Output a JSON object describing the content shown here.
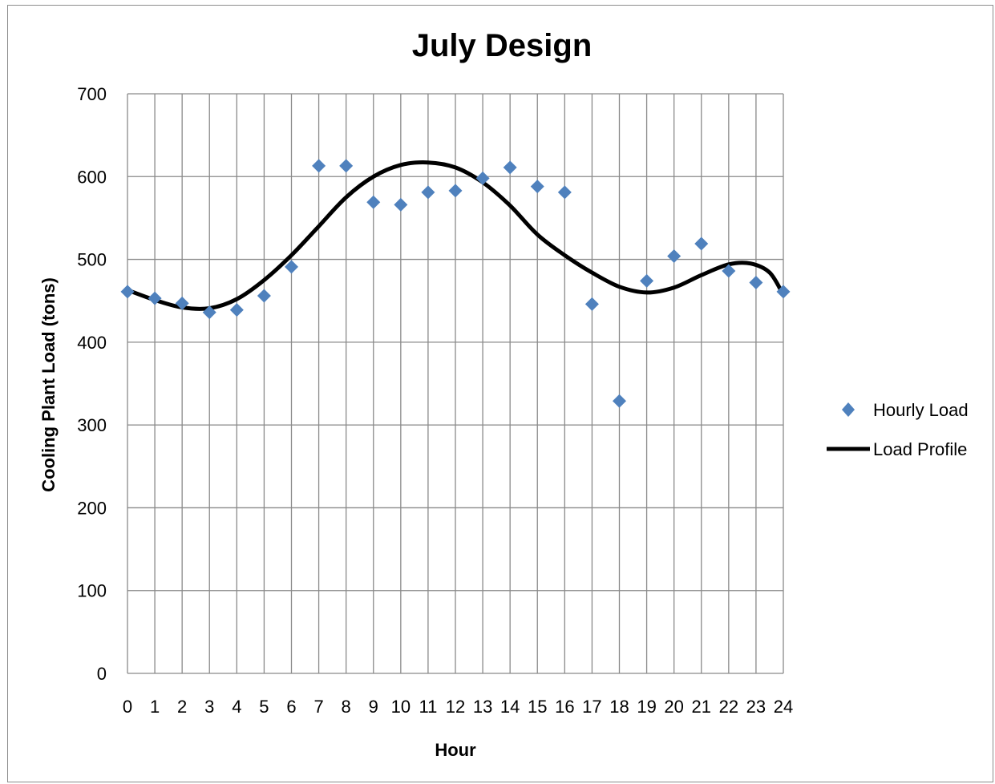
{
  "chart_data": {
    "type": "scatter",
    "title": "July Design",
    "xlabel": "Hour",
    "ylabel": "Cooling Plant Load (tons)",
    "xlim": [
      0,
      24
    ],
    "ylim": [
      0,
      700
    ],
    "x_ticks": [
      0,
      1,
      2,
      3,
      4,
      5,
      6,
      7,
      8,
      9,
      10,
      11,
      12,
      13,
      14,
      15,
      16,
      17,
      18,
      19,
      20,
      21,
      22,
      23,
      24
    ],
    "y_ticks": [
      0,
      100,
      200,
      300,
      400,
      500,
      600,
      700
    ],
    "grid": true,
    "legend_position": "right",
    "series": [
      {
        "name": "Hourly Load",
        "kind": "scatter",
        "marker": "diamond",
        "color": "#4f81bd",
        "x": [
          0,
          1,
          2,
          3,
          4,
          5,
          6,
          7,
          8,
          9,
          10,
          11,
          12,
          13,
          14,
          15,
          16,
          17,
          18,
          19,
          20,
          21,
          22,
          23,
          24
        ],
        "y": [
          461,
          453,
          447,
          436,
          439,
          456,
          491,
          613,
          613,
          569,
          566,
          581,
          583,
          598,
          611,
          588,
          581,
          446,
          329,
          474,
          504,
          519,
          486,
          472,
          461
        ]
      },
      {
        "name": "Load Profile",
        "kind": "line",
        "color": "#000000",
        "x": [
          0,
          1,
          2,
          3,
          4,
          5,
          6,
          7,
          8,
          9,
          10,
          11,
          12,
          13,
          14,
          15,
          16,
          17,
          18,
          19,
          20,
          21,
          22,
          22.8,
          23.5,
          24
        ],
        "y": [
          463,
          451,
          442,
          441,
          452,
          475,
          505,
          540,
          575,
          600,
          614,
          617,
          611,
          593,
          565,
          530,
          505,
          484,
          467,
          460,
          466,
          481,
          494,
          495,
          484,
          457
        ]
      }
    ]
  }
}
